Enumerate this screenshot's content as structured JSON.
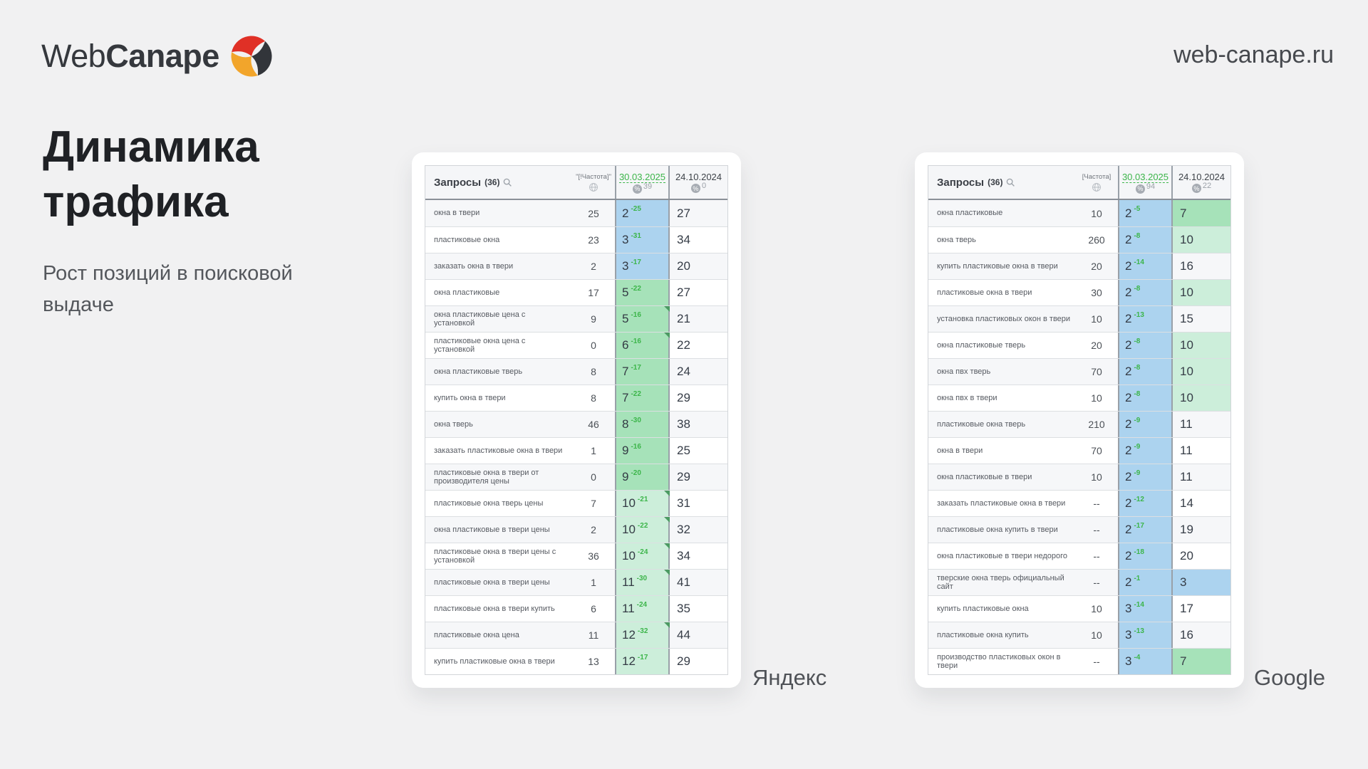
{
  "brand": {
    "logo_text_regular": "Web",
    "logo_text_bold": "Canape",
    "site_url": "web-canape.ru",
    "logo_icon": "webcanape-swirl-icon"
  },
  "hero": {
    "title_line1": "Динамика",
    "title_line2": "трафика",
    "subtitle": "Рост позиций в поисковой выдаче"
  },
  "colors": {
    "accent_green": "#3cb54a",
    "cell_blue": "#acd3ef",
    "cell_green": "#a6e2b9",
    "cell_green_light": "#cceeda",
    "logo_red": "#e03026",
    "logo_dark": "#32353a",
    "logo_yellow": "#f2a52b"
  },
  "icons": {
    "queries_header": "search-icon",
    "frequency_header": "globe-icon",
    "date_badges": "percent-icon"
  },
  "tables": [
    {
      "engine_label": "Яндекс",
      "header": {
        "queries_label": "Запросы",
        "queries_count": "(36)",
        "frequency_label": "\"[!Частота]\"",
        "date_new": "30.03.2025",
        "date_new_percent": "39",
        "date_old": "24.10.2024",
        "date_old_percent": "0"
      },
      "rows": [
        {
          "query": "окна в твери",
          "frequency": "25",
          "position_new": "2",
          "delta": "-25",
          "position_old": "27",
          "new_bg": "blue",
          "old_bg": "none",
          "marker": false
        },
        {
          "query": "пластиковые окна",
          "frequency": "23",
          "position_new": "3",
          "delta": "-31",
          "position_old": "34",
          "new_bg": "blue",
          "old_bg": "none",
          "marker": false
        },
        {
          "query": "заказать окна в твери",
          "frequency": "2",
          "position_new": "3",
          "delta": "-17",
          "position_old": "20",
          "new_bg": "blue",
          "old_bg": "none",
          "marker": false
        },
        {
          "query": "окна пластиковые",
          "frequency": "17",
          "position_new": "5",
          "delta": "-22",
          "position_old": "27",
          "new_bg": "green",
          "old_bg": "none",
          "marker": false
        },
        {
          "query": "окна пластиковые цена с установкой",
          "frequency": "9",
          "position_new": "5",
          "delta": "-16",
          "position_old": "21",
          "new_bg": "green",
          "old_bg": "none",
          "marker": true
        },
        {
          "query": "пластиковые окна цена с установкой",
          "frequency": "0",
          "position_new": "6",
          "delta": "-16",
          "position_old": "22",
          "new_bg": "green",
          "old_bg": "none",
          "marker": true
        },
        {
          "query": "окна пластиковые тверь",
          "frequency": "8",
          "position_new": "7",
          "delta": "-17",
          "position_old": "24",
          "new_bg": "green",
          "old_bg": "none",
          "marker": false
        },
        {
          "query": "купить окна в твери",
          "frequency": "8",
          "position_new": "7",
          "delta": "-22",
          "position_old": "29",
          "new_bg": "green",
          "old_bg": "none",
          "marker": false
        },
        {
          "query": "окна тверь",
          "frequency": "46",
          "position_new": "8",
          "delta": "-30",
          "position_old": "38",
          "new_bg": "green",
          "old_bg": "none",
          "marker": false
        },
        {
          "query": "заказать пластиковые окна в твери",
          "frequency": "1",
          "position_new": "9",
          "delta": "-16",
          "position_old": "25",
          "new_bg": "green",
          "old_bg": "none",
          "marker": false
        },
        {
          "query": "пластиковые окна в твери от производителя цены",
          "frequency": "0",
          "position_new": "9",
          "delta": "-20",
          "position_old": "29",
          "new_bg": "green",
          "old_bg": "none",
          "marker": false
        },
        {
          "query": "пластиковые окна тверь цены",
          "frequency": "7",
          "position_new": "10",
          "delta": "-21",
          "position_old": "31",
          "new_bg": "green-light",
          "old_bg": "none",
          "marker": true
        },
        {
          "query": "окна пластиковые в твери цены",
          "frequency": "2",
          "position_new": "10",
          "delta": "-22",
          "position_old": "32",
          "new_bg": "green-light",
          "old_bg": "none",
          "marker": true
        },
        {
          "query": "пластиковые окна в твери цены с установкой",
          "frequency": "36",
          "position_new": "10",
          "delta": "-24",
          "position_old": "34",
          "new_bg": "green-light",
          "old_bg": "none",
          "marker": true
        },
        {
          "query": "пластиковые окна в твери цены",
          "frequency": "1",
          "position_new": "11",
          "delta": "-30",
          "position_old": "41",
          "new_bg": "green-light",
          "old_bg": "none",
          "marker": true
        },
        {
          "query": "пластиковые окна в твери купить",
          "frequency": "6",
          "position_new": "11",
          "delta": "-24",
          "position_old": "35",
          "new_bg": "green-light",
          "old_bg": "none",
          "marker": false
        },
        {
          "query": "пластиковые окна цена",
          "frequency": "11",
          "position_new": "12",
          "delta": "-32",
          "position_old": "44",
          "new_bg": "green-light",
          "old_bg": "none",
          "marker": true
        },
        {
          "query": "купить пластиковые окна в твери",
          "frequency": "13",
          "position_new": "12",
          "delta": "-17",
          "position_old": "29",
          "new_bg": "green-light",
          "old_bg": "none",
          "marker": false
        }
      ]
    },
    {
      "engine_label": "Google",
      "header": {
        "queries_label": "Запросы",
        "queries_count": "(36)",
        "frequency_label": "[Частота]",
        "date_new": "30.03.2025",
        "date_new_percent": "94",
        "date_old": "24.10.2024",
        "date_old_percent": "22"
      },
      "rows": [
        {
          "query": "окна пластиковые",
          "frequency": "10",
          "position_new": "2",
          "delta": "-5",
          "position_old": "7",
          "new_bg": "blue",
          "old_bg": "green",
          "marker": false
        },
        {
          "query": "окна тверь",
          "frequency": "260",
          "position_new": "2",
          "delta": "-8",
          "position_old": "10",
          "new_bg": "blue",
          "old_bg": "green-light",
          "marker": false
        },
        {
          "query": "купить пластиковые окна в твери",
          "frequency": "20",
          "position_new": "2",
          "delta": "-14",
          "position_old": "16",
          "new_bg": "blue",
          "old_bg": "none",
          "marker": false
        },
        {
          "query": "пластиковые окна в твери",
          "frequency": "30",
          "position_new": "2",
          "delta": "-8",
          "position_old": "10",
          "new_bg": "blue",
          "old_bg": "green-light",
          "marker": false
        },
        {
          "query": "установка пластиковых окон в твери",
          "frequency": "10",
          "position_new": "2",
          "delta": "-13",
          "position_old": "15",
          "new_bg": "blue",
          "old_bg": "none",
          "marker": false
        },
        {
          "query": "окна пластиковые тверь",
          "frequency": "20",
          "position_new": "2",
          "delta": "-8",
          "position_old": "10",
          "new_bg": "blue",
          "old_bg": "green-light",
          "marker": false
        },
        {
          "query": "окна пвх тверь",
          "frequency": "70",
          "position_new": "2",
          "delta": "-8",
          "position_old": "10",
          "new_bg": "blue",
          "old_bg": "green-light",
          "marker": false
        },
        {
          "query": "окна пвх в твери",
          "frequency": "10",
          "position_new": "2",
          "delta": "-8",
          "position_old": "10",
          "new_bg": "blue",
          "old_bg": "green-light",
          "marker": false
        },
        {
          "query": "пластиковые окна тверь",
          "frequency": "210",
          "position_new": "2",
          "delta": "-9",
          "position_old": "11",
          "new_bg": "blue",
          "old_bg": "none",
          "marker": false
        },
        {
          "query": "окна в твери",
          "frequency": "70",
          "position_new": "2",
          "delta": "-9",
          "position_old": "11",
          "new_bg": "blue",
          "old_bg": "none",
          "marker": false
        },
        {
          "query": "окна пластиковые в твери",
          "frequency": "10",
          "position_new": "2",
          "delta": "-9",
          "position_old": "11",
          "new_bg": "blue",
          "old_bg": "none",
          "marker": false
        },
        {
          "query": "заказать пластиковые окна в твери",
          "frequency": "--",
          "position_new": "2",
          "delta": "-12",
          "position_old": "14",
          "new_bg": "blue",
          "old_bg": "none",
          "marker": false
        },
        {
          "query": "пластиковые окна купить в твери",
          "frequency": "--",
          "position_new": "2",
          "delta": "-17",
          "position_old": "19",
          "new_bg": "blue",
          "old_bg": "none",
          "marker": false
        },
        {
          "query": "окна пластиковые в твери недорого",
          "frequency": "--",
          "position_new": "2",
          "delta": "-18",
          "position_old": "20",
          "new_bg": "blue",
          "old_bg": "none",
          "marker": false
        },
        {
          "query": "тверские окна тверь официальный сайт",
          "frequency": "--",
          "position_new": "2",
          "delta": "-1",
          "position_old": "3",
          "new_bg": "blue",
          "old_bg": "blue",
          "marker": false
        },
        {
          "query": "купить пластиковые окна",
          "frequency": "10",
          "position_new": "3",
          "delta": "-14",
          "position_old": "17",
          "new_bg": "blue",
          "old_bg": "none",
          "marker": false
        },
        {
          "query": "пластиковые окна купить",
          "frequency": "10",
          "position_new": "3",
          "delta": "-13",
          "position_old": "16",
          "new_bg": "blue",
          "old_bg": "none",
          "marker": false
        },
        {
          "query": "производство пластиковых окон в твери",
          "frequency": "--",
          "position_new": "3",
          "delta": "-4",
          "position_old": "7",
          "new_bg": "blue",
          "old_bg": "green",
          "marker": false
        }
      ]
    }
  ]
}
